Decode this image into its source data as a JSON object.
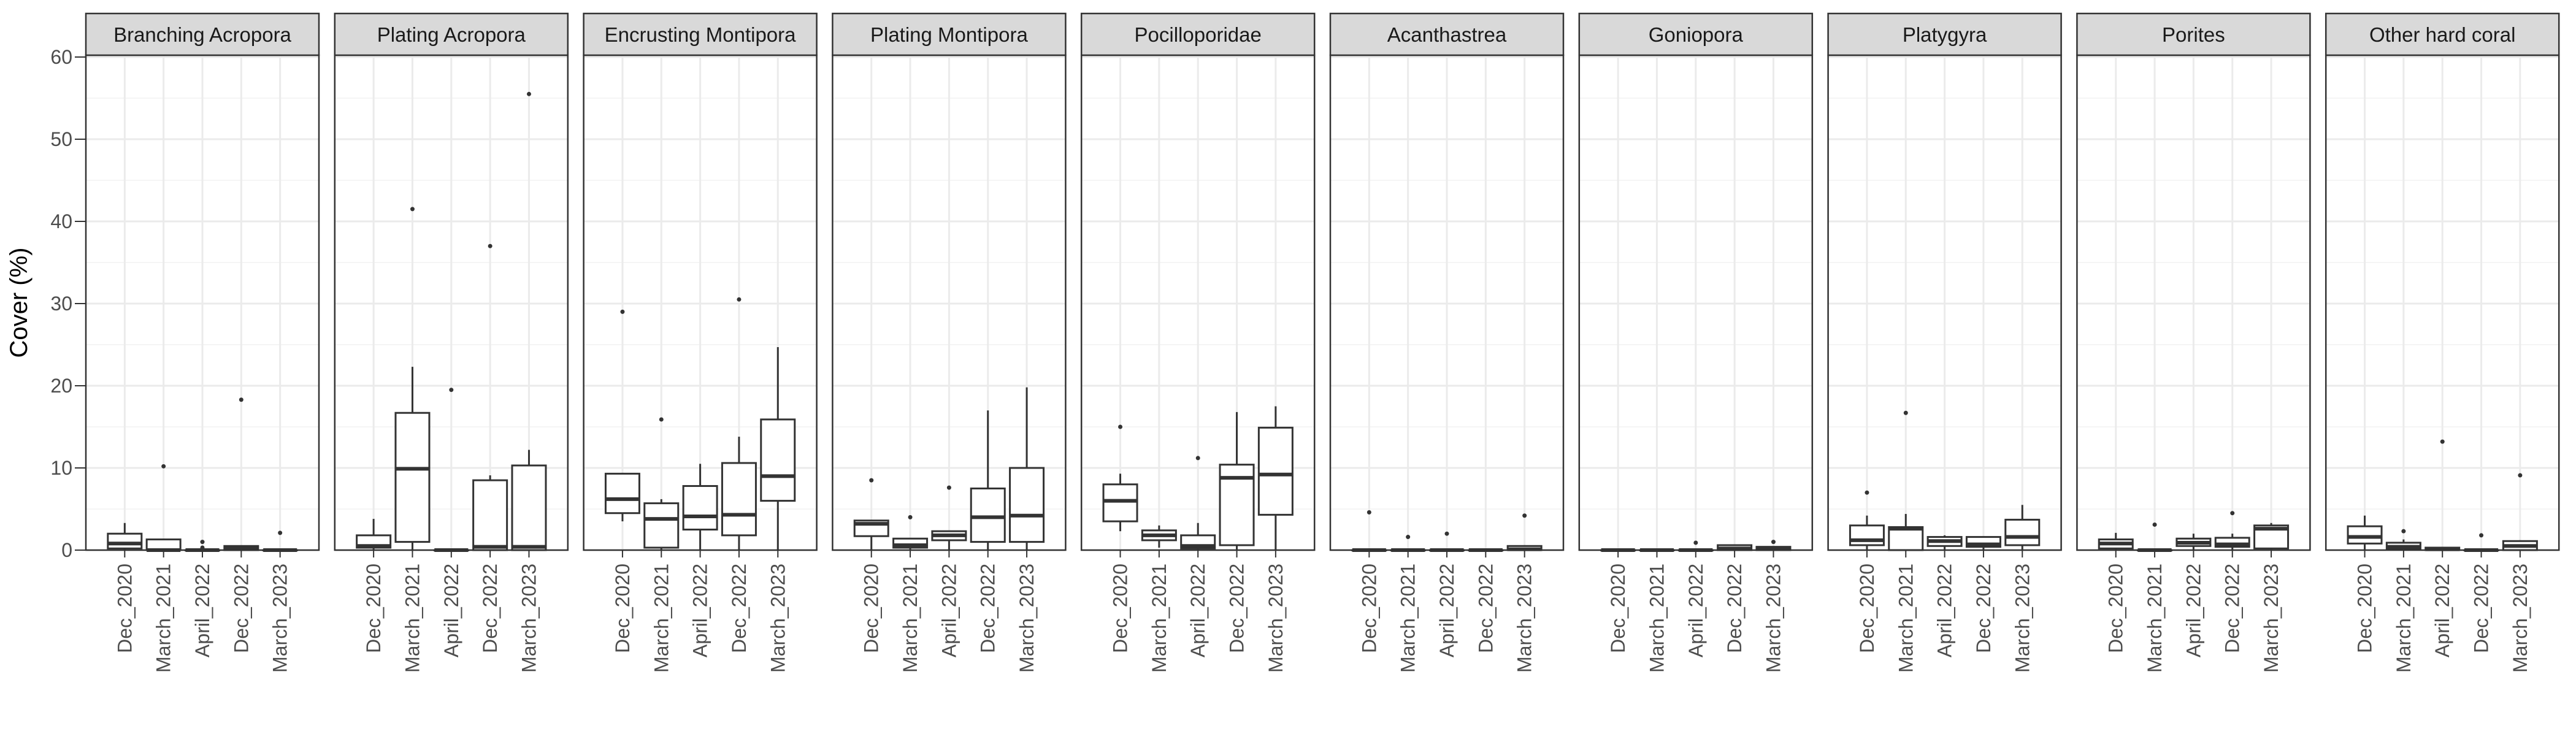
{
  "chart_data": {
    "type": "boxplot",
    "ylabel": "Cover (%)",
    "xlabel": "",
    "ylim": [
      0,
      60
    ],
    "yticks": [
      0,
      10,
      20,
      30,
      40,
      50,
      60
    ],
    "categories": [
      "Dec_2020",
      "March_2021",
      "April_2022",
      "Dec_2022",
      "March_2023"
    ],
    "grid": true,
    "facets": [
      {
        "name": "Branching Acropora",
        "boxes": [
          {
            "min": 0.0,
            "q1": 0.2,
            "median": 0.8,
            "q3": 2.0,
            "max": 3.3,
            "outliers": []
          },
          {
            "min": 0.0,
            "q1": 0.0,
            "median": 0.0,
            "q3": 1.3,
            "max": 1.3,
            "outliers": [
              10.2
            ]
          },
          {
            "min": 0.0,
            "q1": 0.0,
            "median": 0.0,
            "q3": 0.0,
            "max": 0.0,
            "outliers": [
              0.3,
              1.0
            ]
          },
          {
            "min": 0.0,
            "q1": 0.0,
            "median": 0.2,
            "q3": 0.5,
            "max": 0.5,
            "outliers": [
              18.3
            ]
          },
          {
            "min": 0.0,
            "q1": 0.0,
            "median": 0.0,
            "q3": 0.0,
            "max": 0.0,
            "outliers": [
              2.1
            ]
          }
        ]
      },
      {
        "name": "Plating Acropora",
        "boxes": [
          {
            "min": 0.0,
            "q1": 0.3,
            "median": 0.5,
            "q3": 1.8,
            "max": 3.8,
            "outliers": []
          },
          {
            "min": 0.0,
            "q1": 1.0,
            "median": 9.9,
            "q3": 16.7,
            "max": 22.3,
            "outliers": [
              41.5
            ]
          },
          {
            "min": 0.0,
            "q1": 0.0,
            "median": 0.0,
            "q3": 0.0,
            "max": 0.0,
            "outliers": [
              19.5
            ]
          },
          {
            "min": 0.0,
            "q1": 0.0,
            "median": 0.4,
            "q3": 8.5,
            "max": 9.1,
            "outliers": [
              37.0
            ]
          },
          {
            "min": 0.0,
            "q1": 0.0,
            "median": 0.4,
            "q3": 10.3,
            "max": 12.2,
            "outliers": [
              55.5
            ]
          }
        ]
      },
      {
        "name": "Encrusting Montipora",
        "boxes": [
          {
            "min": 3.5,
            "q1": 4.5,
            "median": 6.2,
            "q3": 9.3,
            "max": 9.3,
            "outliers": [
              29.0
            ]
          },
          {
            "min": 0.0,
            "q1": 0.3,
            "median": 3.8,
            "q3": 5.7,
            "max": 6.2,
            "outliers": [
              15.9
            ]
          },
          {
            "min": 0.0,
            "q1": 2.5,
            "median": 4.1,
            "q3": 7.8,
            "max": 10.5,
            "outliers": []
          },
          {
            "min": 0.0,
            "q1": 1.8,
            "median": 4.3,
            "q3": 10.6,
            "max": 13.8,
            "outliers": [
              30.5
            ]
          },
          {
            "min": 0.0,
            "q1": 6.0,
            "median": 9.0,
            "q3": 15.9,
            "max": 24.7,
            "outliers": []
          }
        ]
      },
      {
        "name": "Plating Montipora",
        "boxes": [
          {
            "min": 0.0,
            "q1": 1.7,
            "median": 3.2,
            "q3": 3.6,
            "max": 3.6,
            "outliers": [
              8.5
            ]
          },
          {
            "min": 0.0,
            "q1": 0.3,
            "median": 0.6,
            "q3": 1.4,
            "max": 1.4,
            "outliers": [
              4.0
            ]
          },
          {
            "min": 0.0,
            "q1": 1.2,
            "median": 1.8,
            "q3": 2.3,
            "max": 2.3,
            "outliers": [
              7.6
            ]
          },
          {
            "min": 0.0,
            "q1": 1.0,
            "median": 4.0,
            "q3": 7.5,
            "max": 17.0,
            "outliers": []
          },
          {
            "min": 0.0,
            "q1": 1.0,
            "median": 4.2,
            "q3": 10.0,
            "max": 19.8,
            "outliers": []
          }
        ]
      },
      {
        "name": "Pocilloporidae",
        "boxes": [
          {
            "min": 2.3,
            "q1": 3.5,
            "median": 6.0,
            "q3": 8.0,
            "max": 9.3,
            "outliers": [
              15.0
            ]
          },
          {
            "min": 0.3,
            "q1": 1.2,
            "median": 1.8,
            "q3": 2.4,
            "max": 3.0,
            "outliers": []
          },
          {
            "min": 0.0,
            "q1": 0.2,
            "median": 0.5,
            "q3": 1.8,
            "max": 3.3,
            "outliers": [
              11.2
            ]
          },
          {
            "min": 0.0,
            "q1": 0.6,
            "median": 8.8,
            "q3": 10.4,
            "max": 16.8,
            "outliers": []
          },
          {
            "min": 0.0,
            "q1": 4.3,
            "median": 9.2,
            "q3": 14.9,
            "max": 17.5,
            "outliers": []
          }
        ]
      },
      {
        "name": "Acanthastrea",
        "boxes": [
          {
            "min": 0.0,
            "q1": 0.0,
            "median": 0.0,
            "q3": 0.0,
            "max": 0.0,
            "outliers": [
              4.6
            ]
          },
          {
            "min": 0.0,
            "q1": 0.0,
            "median": 0.0,
            "q3": 0.0,
            "max": 0.0,
            "outliers": [
              1.6
            ]
          },
          {
            "min": 0.0,
            "q1": 0.0,
            "median": 0.0,
            "q3": 0.0,
            "max": 0.0,
            "outliers": [
              2.0
            ]
          },
          {
            "min": 0.0,
            "q1": 0.0,
            "median": 0.0,
            "q3": 0.0,
            "max": 0.0,
            "outliers": []
          },
          {
            "min": 0.0,
            "q1": 0.0,
            "median": 0.1,
            "q3": 0.5,
            "max": 0.6,
            "outliers": [
              4.2
            ]
          }
        ]
      },
      {
        "name": "Goniopora",
        "boxes": [
          {
            "min": 0.0,
            "q1": 0.0,
            "median": 0.0,
            "q3": 0.0,
            "max": 0.0,
            "outliers": []
          },
          {
            "min": 0.0,
            "q1": 0.0,
            "median": 0.0,
            "q3": 0.0,
            "max": 0.0,
            "outliers": []
          },
          {
            "min": 0.0,
            "q1": 0.0,
            "median": 0.0,
            "q3": 0.0,
            "max": 0.0,
            "outliers": [
              0.9
            ]
          },
          {
            "min": 0.0,
            "q1": 0.0,
            "median": 0.2,
            "q3": 0.6,
            "max": 0.6,
            "outliers": []
          },
          {
            "min": 0.0,
            "q1": 0.0,
            "median": 0.2,
            "q3": 0.4,
            "max": 0.4,
            "outliers": [
              1.0
            ]
          }
        ]
      },
      {
        "name": "Platygyra",
        "boxes": [
          {
            "min": 0.0,
            "q1": 0.6,
            "median": 1.2,
            "q3": 3.0,
            "max": 4.2,
            "outliers": [
              7.0
            ]
          },
          {
            "min": 0.0,
            "q1": 0.0,
            "median": 2.6,
            "q3": 2.8,
            "max": 4.4,
            "outliers": [
              16.7
            ]
          },
          {
            "min": 0.0,
            "q1": 0.5,
            "median": 1.1,
            "q3": 1.6,
            "max": 1.8,
            "outliers": []
          },
          {
            "min": 0.0,
            "q1": 0.4,
            "median": 0.7,
            "q3": 1.6,
            "max": 1.6,
            "outliers": []
          },
          {
            "min": 0.0,
            "q1": 0.6,
            "median": 1.6,
            "q3": 3.7,
            "max": 5.5,
            "outliers": []
          }
        ]
      },
      {
        "name": "Porites",
        "boxes": [
          {
            "min": 0.0,
            "q1": 0.2,
            "median": 0.8,
            "q3": 1.3,
            "max": 2.1,
            "outliers": []
          },
          {
            "min": 0.0,
            "q1": 0.0,
            "median": 0.0,
            "q3": 0.0,
            "max": 0.0,
            "outliers": [
              3.1
            ]
          },
          {
            "min": 0.0,
            "q1": 0.5,
            "median": 0.9,
            "q3": 1.4,
            "max": 2.0,
            "outliers": []
          },
          {
            "min": 0.0,
            "q1": 0.4,
            "median": 0.7,
            "q3": 1.5,
            "max": 2.0,
            "outliers": [
              4.5
            ]
          },
          {
            "min": 0.0,
            "q1": 0.2,
            "median": 2.6,
            "q3": 3.0,
            "max": 3.3,
            "outliers": []
          }
        ]
      },
      {
        "name": "Other hard coral",
        "boxes": [
          {
            "min": 0.0,
            "q1": 0.8,
            "median": 1.6,
            "q3": 2.9,
            "max": 4.2,
            "outliers": []
          },
          {
            "min": 0.0,
            "q1": 0.1,
            "median": 0.4,
            "q3": 0.9,
            "max": 1.3,
            "outliers": [
              2.3
            ]
          },
          {
            "min": 0.0,
            "q1": 0.0,
            "median": 0.1,
            "q3": 0.3,
            "max": 0.4,
            "outliers": [
              13.2
            ]
          },
          {
            "min": 0.0,
            "q1": 0.0,
            "median": 0.0,
            "q3": 0.0,
            "max": 0.0,
            "outliers": [
              1.8
            ]
          },
          {
            "min": 0.0,
            "q1": 0.0,
            "median": 0.5,
            "q3": 1.1,
            "max": 1.2,
            "outliers": [
              9.1
            ]
          }
        ]
      }
    ]
  }
}
